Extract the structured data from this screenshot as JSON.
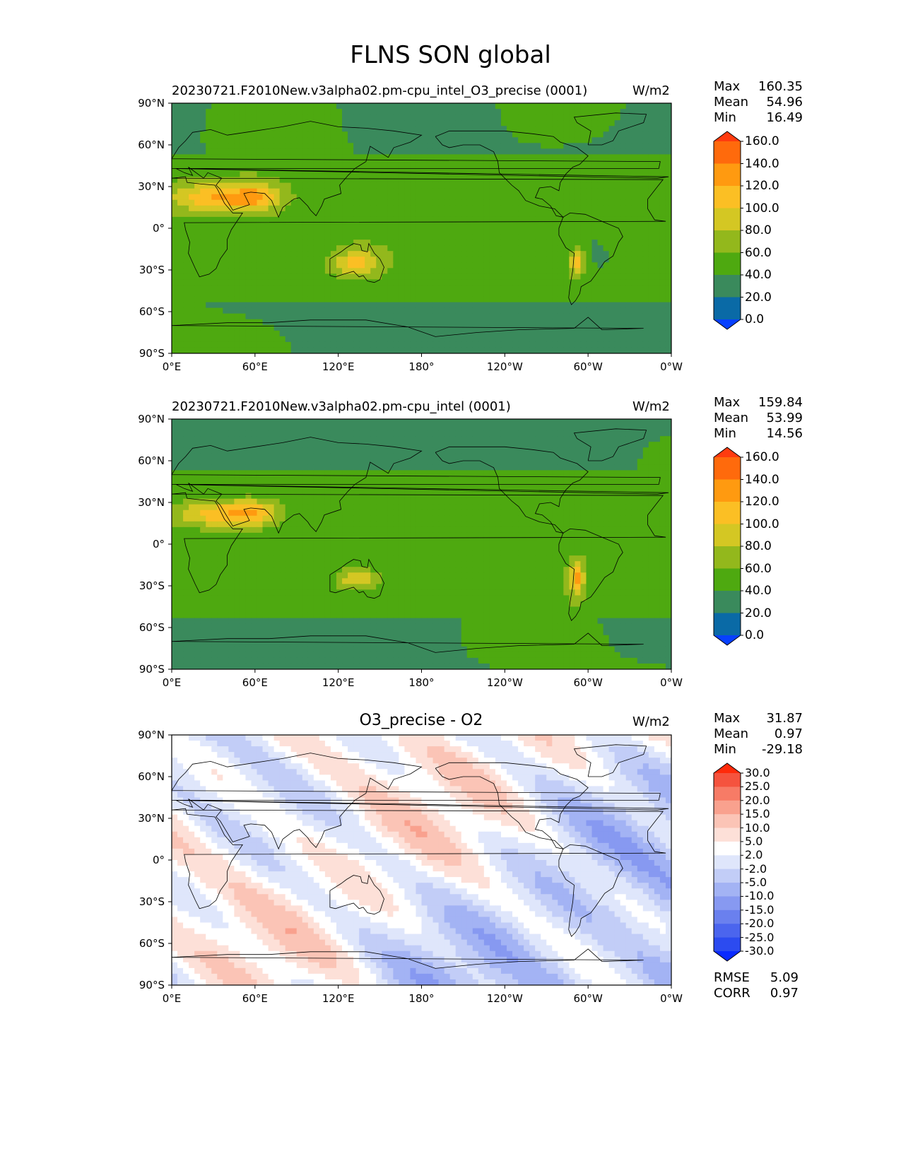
{
  "chart_data": [
    {
      "type": "heatmap",
      "title": "FLNS SON global",
      "panel_title": "20230721.F2010New.v3alpha02.pm-cpu_intel_O3_precise (0001)",
      "units": "W/m2",
      "stats": {
        "labels": [
          "Max",
          "Mean",
          "Min"
        ],
        "values": [
          "160.35",
          "54.96",
          "16.49"
        ]
      },
      "x_ticks": [
        "0°E",
        "60°E",
        "120°E",
        "180°",
        "120°W",
        "60°W",
        "0°W"
      ],
      "y_ticks": [
        "90°N",
        "60°N",
        "30°N",
        "0°",
        "30°S",
        "60°S",
        "90°S"
      ],
      "colorbar": {
        "levels": [
          "160.0",
          "140.0",
          "120.0",
          "100.0",
          "80.0",
          "60.0",
          "40.0",
          "20.0",
          "0.0"
        ],
        "colors": [
          "#ff3b0f",
          "#ff6a0c",
          "#ff9a10",
          "#fbbf24",
          "#d4c723",
          "#93b81c",
          "#4ea910",
          "#3a8a5c",
          "#0a6aa6",
          "#0740ff"
        ]
      }
    },
    {
      "type": "heatmap",
      "panel_title": "20230721.F2010New.v3alpha02.pm-cpu_intel (0001)",
      "units": "W/m2",
      "stats": {
        "labels": [
          "Max",
          "Mean",
          "Min"
        ],
        "values": [
          "159.84",
          "53.99",
          "14.56"
        ]
      },
      "x_ticks": [
        "0°E",
        "60°E",
        "120°E",
        "180°",
        "120°W",
        "60°W",
        "0°W"
      ],
      "y_ticks": [
        "90°N",
        "60°N",
        "30°N",
        "0°",
        "30°S",
        "60°S",
        "90°S"
      ],
      "colorbar": {
        "levels": [
          "160.0",
          "140.0",
          "120.0",
          "100.0",
          "80.0",
          "60.0",
          "40.0",
          "20.0",
          "0.0"
        ],
        "colors": [
          "#ff3b0f",
          "#ff6a0c",
          "#ff9a10",
          "#fbbf24",
          "#d4c723",
          "#93b81c",
          "#4ea910",
          "#3a8a5c",
          "#0a6aa6",
          "#0740ff"
        ]
      }
    },
    {
      "type": "heatmap",
      "panel_title": "O3_precise - O2",
      "units": "W/m2",
      "stats": {
        "labels": [
          "Max",
          "Mean",
          "Min"
        ],
        "values": [
          "31.87",
          "0.97",
          "-29.18"
        ]
      },
      "x_ticks": [
        "0°E",
        "60°E",
        "120°E",
        "180°",
        "120°W",
        "60°W",
        "0°W"
      ],
      "y_ticks": [
        "90°N",
        "60°N",
        "30°N",
        "0°",
        "30°S",
        "60°S",
        "90°S"
      ],
      "colorbar": {
        "levels": [
          "30.0",
          "25.0",
          "20.0",
          "15.0",
          "10.0",
          "5.0",
          "2.0",
          "-2.0",
          "-5.0",
          "-10.0",
          "-15.0",
          "-20.0",
          "-25.0",
          "-30.0"
        ],
        "colors": [
          "#ff2a0a",
          "#f5533e",
          "#f77b66",
          "#f9a18e",
          "#fbc4b6",
          "#fde0d8",
          "#ffffff",
          "#dfe6fb",
          "#c2cdf7",
          "#a3b3f4",
          "#8799f1",
          "#6a80ee",
          "#4b65ee",
          "#2c4bf0",
          "#0a2aff"
        ]
      },
      "error_stats": {
        "labels": [
          "RMSE",
          "CORR"
        ],
        "values": [
          "5.09",
          "0.97"
        ]
      }
    }
  ]
}
